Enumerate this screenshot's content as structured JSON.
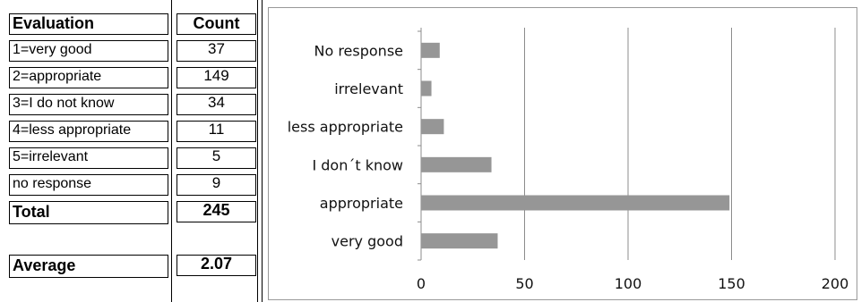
{
  "table": {
    "header": {
      "col1": "Evaluation",
      "col2": "Count"
    },
    "rows": [
      {
        "label": "1=very good",
        "count": "37"
      },
      {
        "label": "2=appropriate",
        "count": "149"
      },
      {
        "label": "3=I do not know",
        "count": "34"
      },
      {
        "label": "4=less appropriate",
        "count": "11"
      },
      {
        "label": "5=irrelevant",
        "count": "5"
      },
      {
        "label": "no response",
        "count": "9"
      }
    ],
    "total": {
      "label": "Total",
      "count": "245"
    },
    "average": {
      "label": "Average",
      "count": "2.07"
    }
  },
  "chart_data": {
    "type": "bar",
    "orientation": "horizontal",
    "categories": [
      "No response",
      "irrelevant",
      "less appropriate",
      "I don´t know",
      "appropriate",
      "very good"
    ],
    "values": [
      9,
      5,
      11,
      34,
      149,
      37
    ],
    "xlim": [
      0,
      200
    ],
    "xticks": [
      0,
      50,
      100,
      150,
      200
    ],
    "xtick_labels": [
      "0",
      "50",
      "100",
      "150",
      "200"
    ],
    "grid": "vertical",
    "bar_color": "#969696",
    "title": "",
    "xlabel": "",
    "ylabel": ""
  }
}
